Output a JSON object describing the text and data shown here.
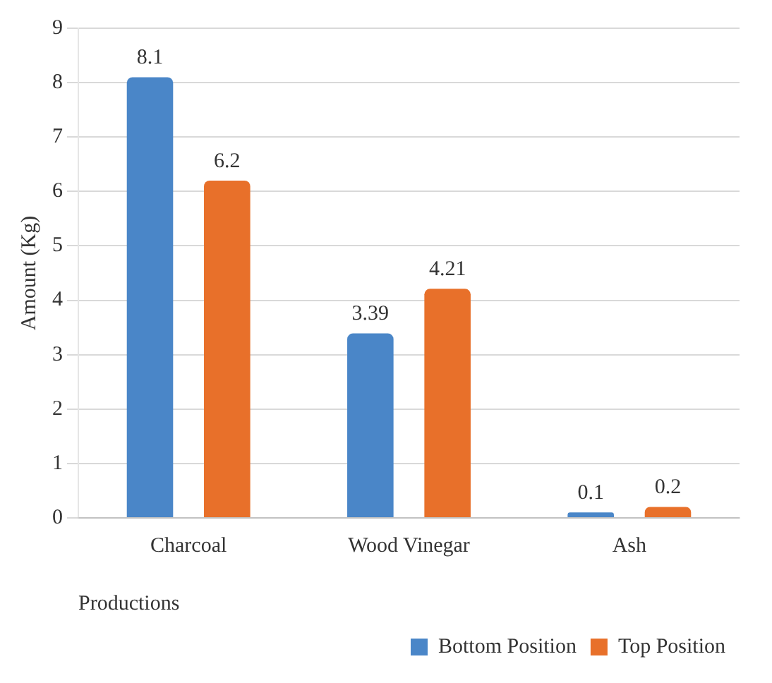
{
  "chart_data": {
    "type": "bar",
    "xlabel": "Productions",
    "ylabel": "Amount (Kg)",
    "categories": [
      "Charcoal",
      "Wood Vinegar",
      "Ash"
    ],
    "series": [
      {
        "name": "Bottom Position",
        "color": "#4a86c8",
        "values": [
          8.1,
          3.39,
          0.1
        ]
      },
      {
        "name": "Top Position",
        "color": "#e8702a",
        "values": [
          6.2,
          4.21,
          0.2
        ]
      }
    ],
    "ylim": [
      0,
      9
    ],
    "yticks": [
      0,
      1,
      2,
      3,
      4,
      5,
      6,
      7,
      8,
      9
    ],
    "grid": "y",
    "legend": "bottom right",
    "data_labels": true
  }
}
